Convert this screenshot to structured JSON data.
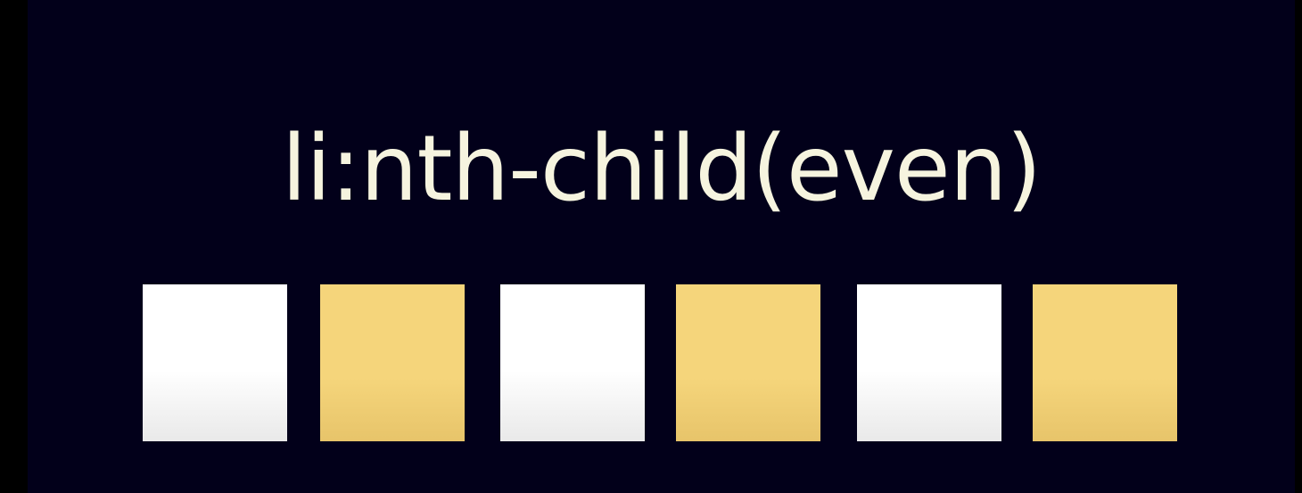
{
  "title": "li:nth-child(even)",
  "items": [
    {
      "position": 1,
      "parity": "odd",
      "highlighted": false
    },
    {
      "position": 2,
      "parity": "even",
      "highlighted": true
    },
    {
      "position": 3,
      "parity": "odd",
      "highlighted": false
    },
    {
      "position": 4,
      "parity": "even",
      "highlighted": true
    },
    {
      "position": 5,
      "parity": "odd",
      "highlighted": false
    },
    {
      "position": 6,
      "parity": "even",
      "highlighted": true
    }
  ],
  "colors": {
    "background": "#02001a",
    "title_text": "#f6f4df",
    "odd_item": "#ffffff",
    "even_item": "#f5d57b"
  }
}
